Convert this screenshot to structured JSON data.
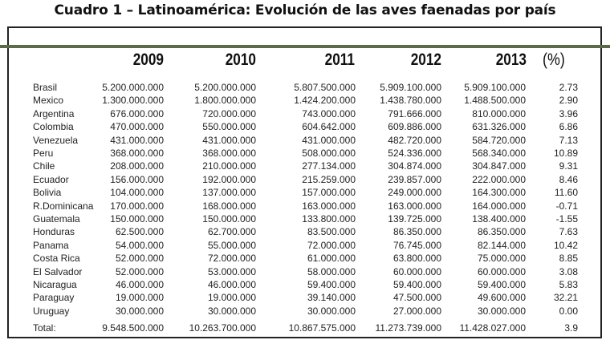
{
  "title": "Cuadro 1 – Latinoamérica: Evolución de las aves faenadas por país",
  "accent_color": "#5b6a49",
  "headers": [
    "2009",
    "2010",
    "2011",
    "2012",
    "2013",
    "(%)"
  ],
  "rows": [
    [
      "Brasil",
      "5.200.000.000",
      "5.200.000.000",
      "5.807.500.000",
      "5.909.100.000",
      "5.909.100.000",
      "2.73"
    ],
    [
      "Mexico",
      "1.300.000.000",
      "1.800.000.000",
      "1.424.200.000",
      "1.438.780.000",
      "1.488.500.000",
      "2.90"
    ],
    [
      "Argentina",
      "676.000.000",
      "720.000.000",
      "743.000.000",
      "791.666.000",
      "810.000.000",
      "3.96"
    ],
    [
      "Colombia",
      "470.000.000",
      "550.000.000",
      "604.642.000",
      "609.886.000",
      "631.326.000",
      "6.86"
    ],
    [
      "Venezuela",
      "431.000.000",
      "431.000.000",
      "431.000.000",
      "482.720.000",
      "584.720.000",
      "7.13"
    ],
    [
      "Peru",
      "368.000.000",
      "368.000.000",
      "508.000.000",
      "524.336.000",
      "568.340.000",
      "10.89"
    ],
    [
      "Chile",
      "208.000.000",
      "210.000.000",
      "277.134.000",
      "304.874.000",
      "304.847.000",
      "9.31"
    ],
    [
      "Ecuador",
      "156.000.000",
      "192.000.000",
      "215.259.000",
      "239.857.000",
      "222.000.000",
      "8.46"
    ],
    [
      "Bolivia",
      "104.000.000",
      "137.000.000",
      "157.000.000",
      "249.000.000",
      "164.300.000",
      "11.60"
    ],
    [
      "R.Dominicana",
      "170.000.000",
      "168.000.000",
      "163.000.000",
      "163.000.000",
      "164.000.000",
      "-0.71"
    ],
    [
      "Guatemala",
      "150.000.000",
      "150.000.000",
      "133.800.000",
      "139.725.000",
      "138.400.000",
      "-1.55"
    ],
    [
      "Honduras",
      "62.500.000",
      "62.700.000",
      "83.500.000",
      "86.350.000",
      "86.350.000",
      "7.63"
    ],
    [
      "Panama",
      "54.000.000",
      "55.000.000",
      "72.000.000",
      "76.745.000",
      "82.144.000",
      "10.42"
    ],
    [
      "Costa Rica",
      "52.000.000",
      "72.000.000",
      "61.000.000",
      "63.800.000",
      "75.000.000",
      "8.85"
    ],
    [
      "El Salvador",
      "52.000.000",
      "53.000.000",
      "58.000.000",
      "60.000.000",
      "60.000.000",
      "3.08"
    ],
    [
      "Nicaragua",
      "46.000.000",
      "46.000.000",
      "59.400.000",
      "59.400.000",
      "59.400.000",
      "5.83"
    ],
    [
      "Paraguay",
      "19.000.000",
      "19.000.000",
      "39.140.000",
      "47.500.000",
      "49.600.000",
      "32.21"
    ],
    [
      "Uruguay",
      "30.000.000",
      "30.000.000",
      "30.000.000",
      "27.000.000",
      "30.000.000",
      "0.00"
    ]
  ],
  "total": [
    "Total:",
    "9.548.500.000",
    "10.263.700.000",
    "10.867.575.000",
    "11.273.739.000",
    "11.428.027.000",
    "3.9"
  ]
}
